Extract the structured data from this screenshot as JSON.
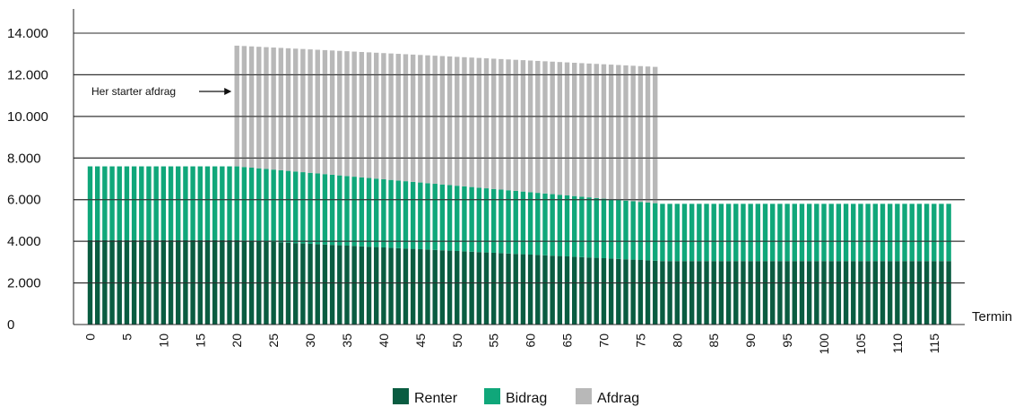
{
  "chart_data": {
    "type": "bar",
    "stacked": true,
    "xlabel": "Termin",
    "ylabel": "",
    "ylim": [
      0,
      15000
    ],
    "yticks": [
      0,
      2000,
      4000,
      6000,
      8000,
      10000,
      12000,
      14000
    ],
    "ytick_labels": [
      "0",
      "2.000",
      "4.000",
      "6.000",
      "8.000",
      "10.000",
      "12.000",
      "14.000"
    ],
    "xlim": [
      0,
      118
    ],
    "xticks": [
      0,
      5,
      10,
      15,
      20,
      25,
      30,
      35,
      40,
      45,
      50,
      55,
      60,
      65,
      70,
      75,
      80,
      85,
      90,
      95,
      100,
      105,
      110,
      115
    ],
    "grid": "horizontal",
    "legend_position": "bottom-center",
    "annotation": {
      "text": "Her starter afdrag",
      "points_to_termin": 20
    },
    "series": [
      {
        "name": "Renter",
        "color": "#0a5c41",
        "segments": [
          {
            "from": 0,
            "to": 19,
            "start": 4050,
            "end": 4050
          },
          {
            "from": 20,
            "to": 78,
            "start": 4050,
            "end": 3050
          },
          {
            "from": 79,
            "to": 117,
            "start": 3050,
            "end": 3050
          }
        ]
      },
      {
        "name": "Bidrag",
        "color": "#10a77a",
        "segments": [
          {
            "from": 0,
            "to": 19,
            "start": 3550,
            "end": 3550
          },
          {
            "from": 20,
            "to": 78,
            "start": 3550,
            "end": 2750
          },
          {
            "from": 79,
            "to": 117,
            "start": 2750,
            "end": 2750
          }
        ]
      },
      {
        "name": "Afdrag",
        "color": "#b8b8b8",
        "segments": [
          {
            "from": 20,
            "to": 77,
            "start": 5800,
            "end": 6550
          }
        ]
      }
    ]
  }
}
